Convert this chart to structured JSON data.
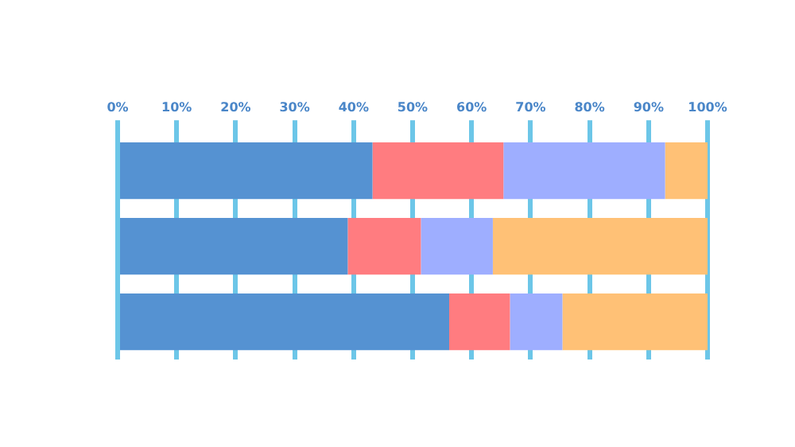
{
  "chart_data": {
    "type": "bar",
    "orientation": "horizontal",
    "stacked": true,
    "categories": [
      null,
      null,
      null
    ],
    "series": [
      {
        "color": "#5592d2",
        "values": [
          43.2,
          39,
          56.2
        ]
      },
      {
        "color": "#ff7c80",
        "values": [
          22.2,
          12.4,
          10.3
        ]
      },
      {
        "color": "#9eaeff",
        "values": [
          27.4,
          12.2,
          8.9
        ]
      },
      {
        "color": "#ffc176",
        "values": [
          7.2,
          36.4,
          24.6
        ]
      }
    ],
    "xlim": [
      0,
      100
    ],
    "xticks": [
      {
        "value": 0,
        "label": "0%"
      },
      {
        "value": 10,
        "label": "10%"
      },
      {
        "value": 20,
        "label": "20%"
      },
      {
        "value": 30,
        "label": "30%"
      },
      {
        "value": 40,
        "label": "40%"
      },
      {
        "value": 50,
        "label": "50%"
      },
      {
        "value": 60,
        "label": "60%"
      },
      {
        "value": 70,
        "label": "70%"
      },
      {
        "value": 80,
        "label": "80%"
      },
      {
        "value": 90,
        "label": "90%"
      },
      {
        "value": 100,
        "label": "100%"
      }
    ],
    "grid": "x"
  }
}
